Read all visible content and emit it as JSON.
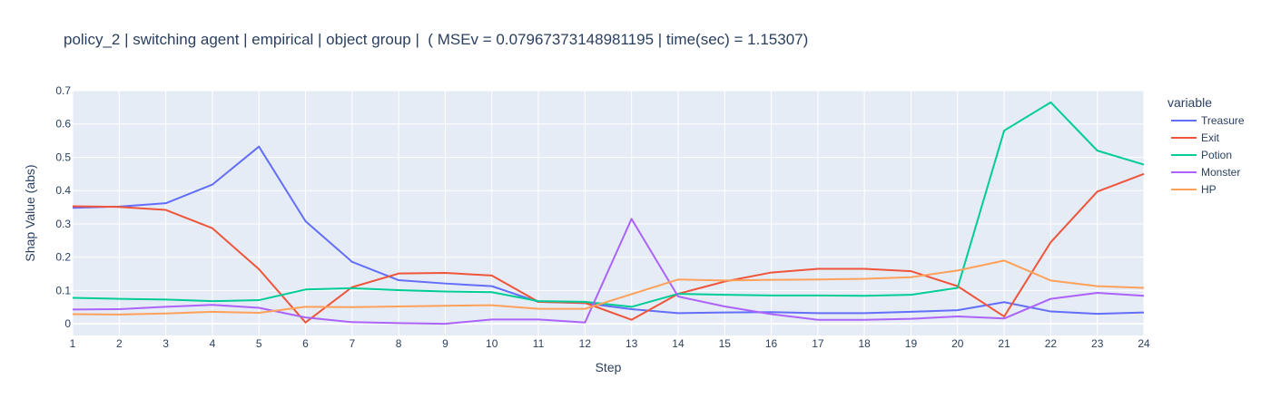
{
  "chart_data": {
    "type": "line",
    "title": "policy_2 | switching agent | empirical | object group |  ( MSEv = 0.07967373148981195 | time(sec) = 1.15307)",
    "xlabel": "Step",
    "ylabel": "Shap Value (abs)",
    "legend_title": "variable",
    "legend_placement": "right",
    "grid": true,
    "xlim": [
      1,
      24
    ],
    "ylim": [
      -0.035,
      0.7
    ],
    "x_ticks": [
      1,
      2,
      3,
      4,
      5,
      6,
      7,
      8,
      9,
      10,
      11,
      12,
      13,
      14,
      15,
      16,
      17,
      18,
      19,
      20,
      21,
      22,
      23,
      24
    ],
    "y_ticks": [
      0,
      0.1,
      0.2,
      0.3,
      0.4,
      0.5,
      0.6,
      0.7
    ],
    "y_tick_labels": [
      "0",
      "0.1",
      "0.2",
      "0.3",
      "0.4",
      "0.5",
      "0.6",
      "0.7"
    ],
    "x": [
      1,
      2,
      3,
      4,
      5,
      6,
      7,
      8,
      9,
      10,
      11,
      12,
      13,
      14,
      15,
      16,
      17,
      18,
      19,
      20,
      21,
      22,
      23,
      24
    ],
    "series": [
      {
        "name": "Treasure",
        "color": "#636efa",
        "values": [
          0.348,
          0.352,
          0.362,
          0.418,
          0.532,
          0.308,
          0.186,
          0.131,
          0.121,
          0.113,
          0.066,
          0.062,
          0.044,
          0.032,
          0.034,
          0.035,
          0.032,
          0.032,
          0.036,
          0.041,
          0.065,
          0.037,
          0.03,
          0.034
        ]
      },
      {
        "name": "Exit",
        "color": "#ef553b",
        "values": [
          0.353,
          0.351,
          0.342,
          0.287,
          0.164,
          0.004,
          0.11,
          0.151,
          0.153,
          0.145,
          0.066,
          0.063,
          0.012,
          0.09,
          0.127,
          0.154,
          0.165,
          0.165,
          0.158,
          0.113,
          0.022,
          0.245,
          0.397,
          0.45
        ]
      },
      {
        "name": "Potion",
        "color": "#00cc96",
        "values": [
          0.078,
          0.075,
          0.073,
          0.068,
          0.071,
          0.103,
          0.107,
          0.101,
          0.097,
          0.095,
          0.068,
          0.066,
          0.051,
          0.09,
          0.087,
          0.085,
          0.085,
          0.084,
          0.087,
          0.108,
          0.58,
          0.665,
          0.52,
          0.478
        ]
      },
      {
        "name": "Monster",
        "color": "#ab63fa",
        "values": [
          0.043,
          0.044,
          0.051,
          0.057,
          0.048,
          0.019,
          0.005,
          0.002,
          0.0,
          0.013,
          0.013,
          0.004,
          0.315,
          0.082,
          0.052,
          0.029,
          0.012,
          0.012,
          0.015,
          0.022,
          0.016,
          0.075,
          0.093,
          0.084
        ]
      },
      {
        "name": "HP",
        "color": "#ffa15a",
        "values": [
          0.029,
          0.028,
          0.031,
          0.036,
          0.033,
          0.051,
          0.05,
          0.052,
          0.054,
          0.056,
          0.045,
          0.045,
          0.089,
          0.133,
          0.13,
          0.132,
          0.133,
          0.135,
          0.14,
          0.16,
          0.19,
          0.13,
          0.113,
          0.108
        ]
      }
    ]
  },
  "colors": {
    "plot_background": "#e5ecf6",
    "grid": "#ffffff",
    "text": "#2a3f5f"
  }
}
